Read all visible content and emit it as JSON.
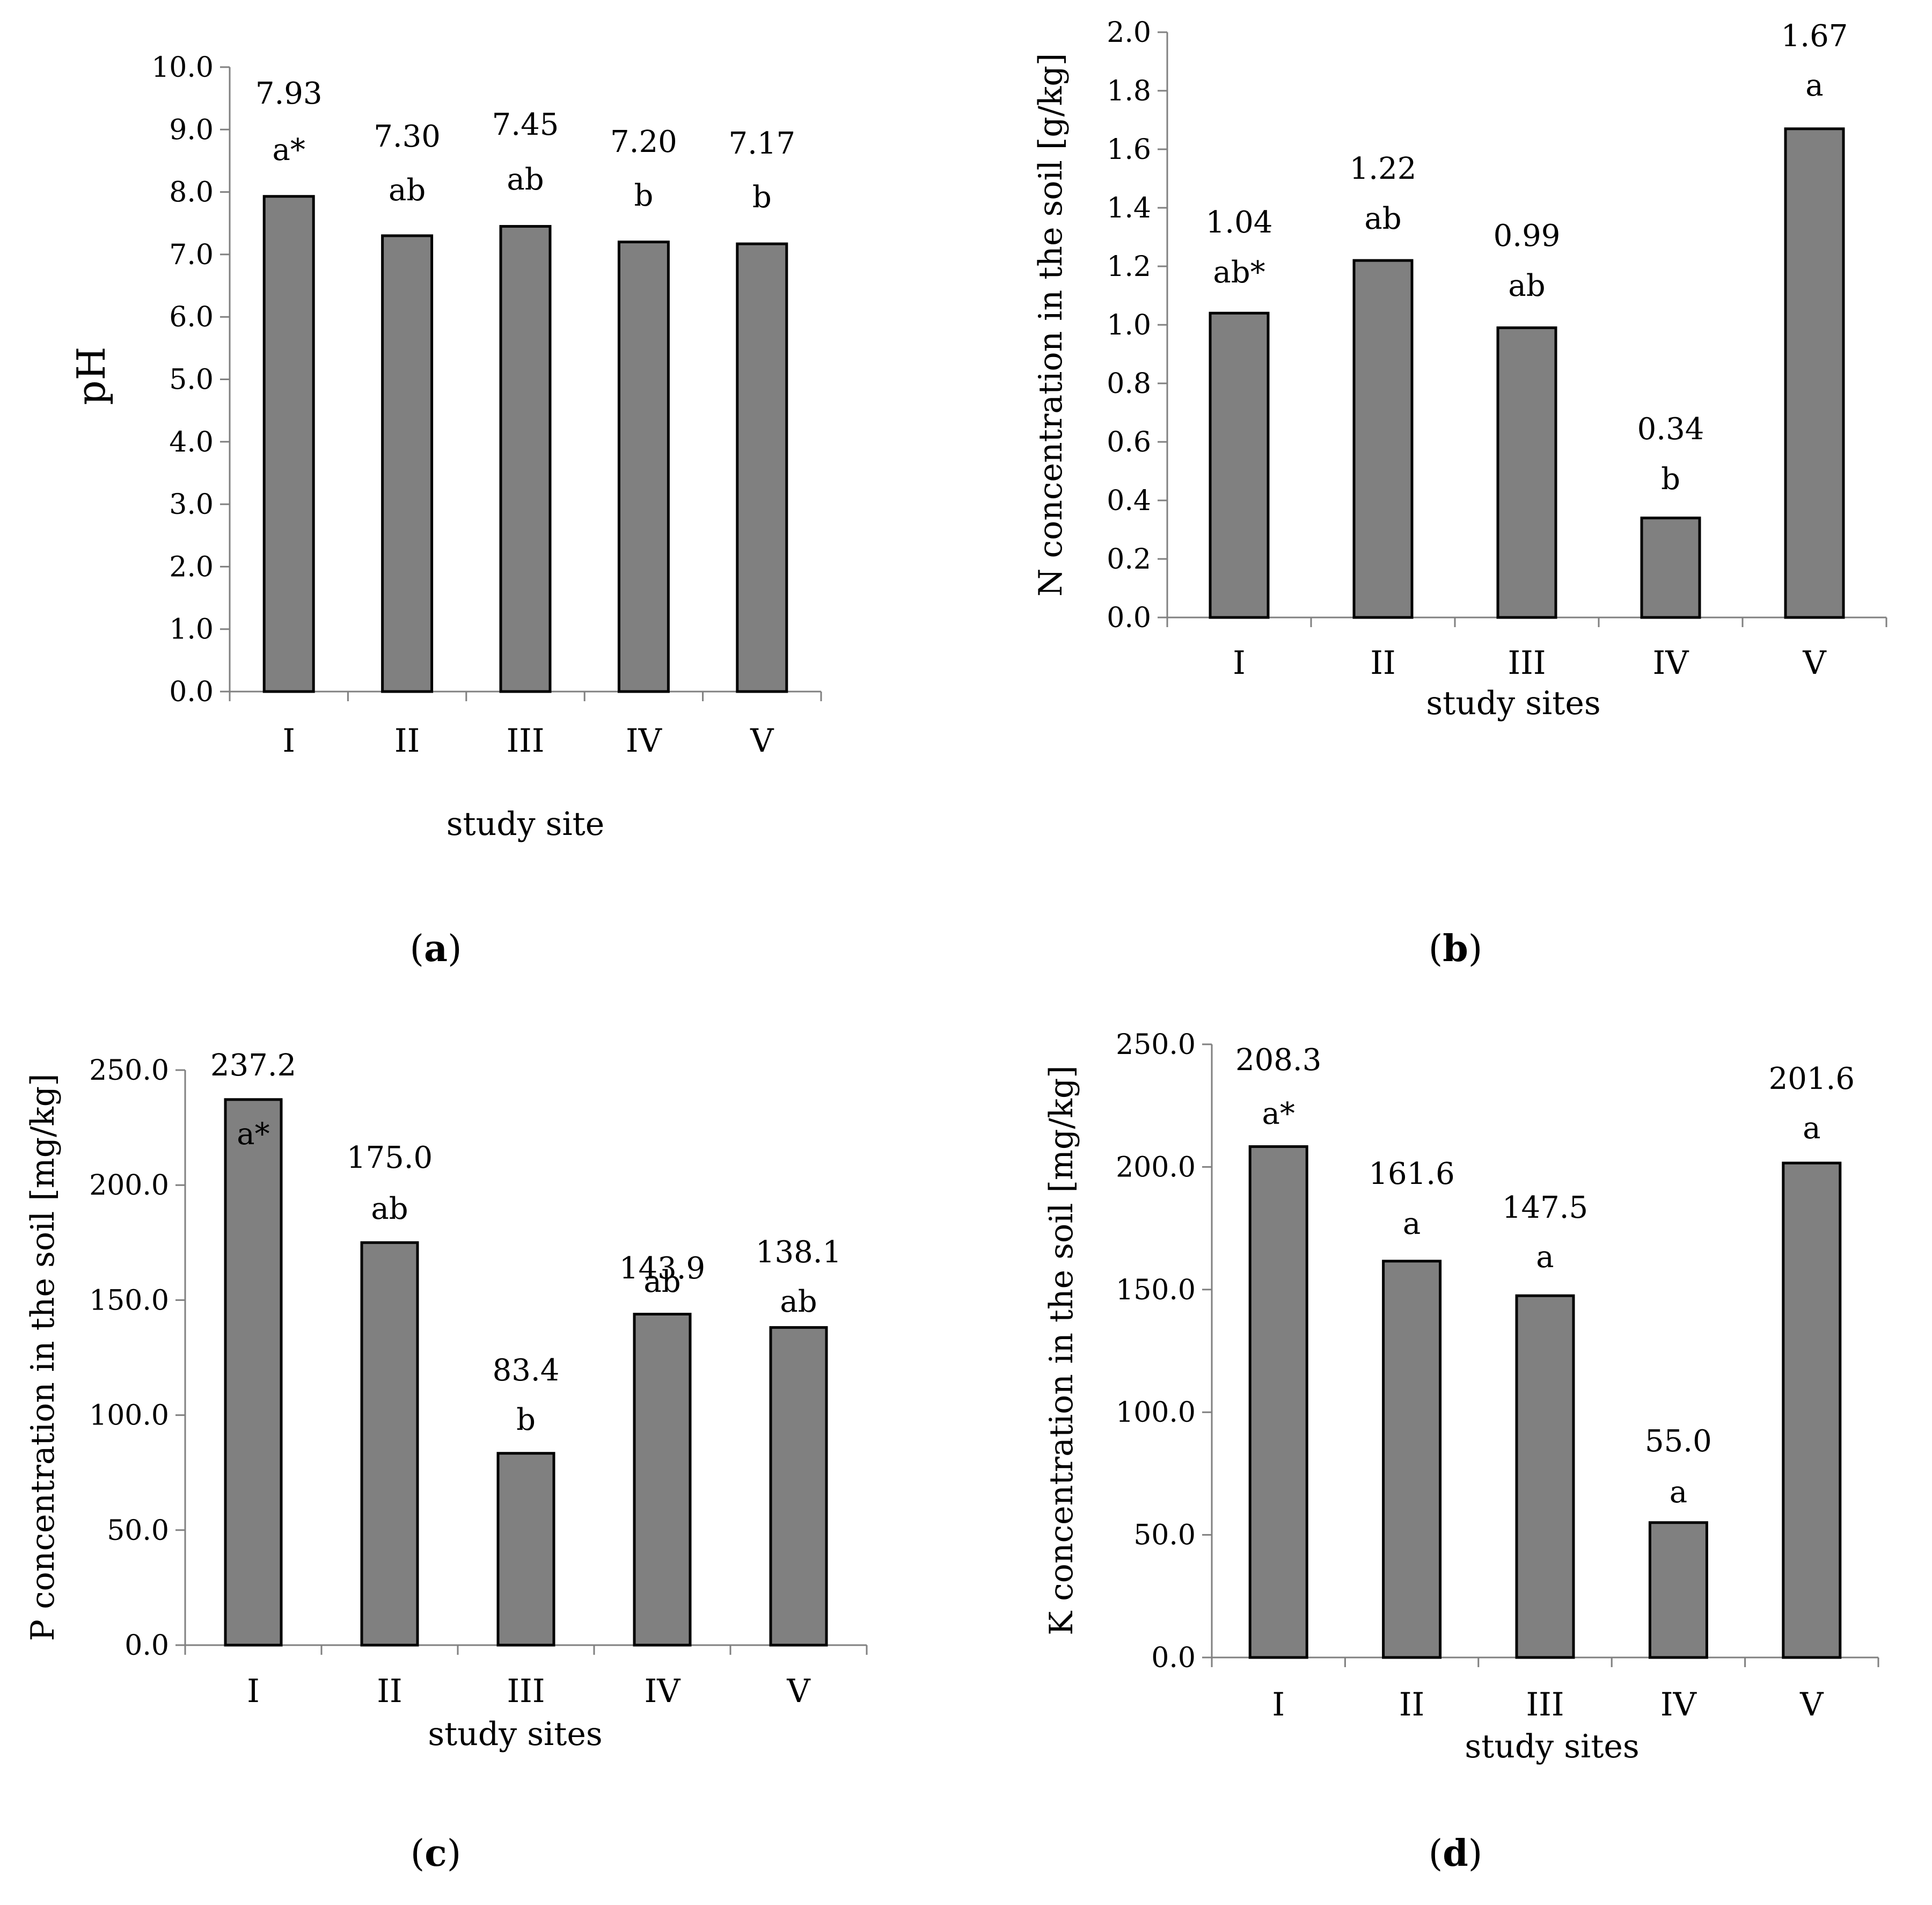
{
  "chart_data": [
    {
      "type": "bar",
      "panel": "a",
      "categories": [
        "I",
        "II",
        "III",
        "IV",
        "V"
      ],
      "values": [
        7.93,
        7.3,
        7.45,
        7.2,
        7.17
      ],
      "value_labels": [
        "7.93",
        "7.30",
        "7.45",
        "7.20",
        "7.17"
      ],
      "letters": [
        "a*",
        "ab",
        "ab",
        "b",
        "b"
      ],
      "ylabel": "pH",
      "xlabel": "study site",
      "ylim": [
        0,
        10
      ],
      "ystep": 1,
      "ydecimals": 1,
      "ytick_labels": [
        "0.0",
        "1.0",
        "2.0",
        "3.0",
        "4.0",
        "5.0",
        "6.0",
        "7.0",
        "8.0",
        "9.0",
        "10.0"
      ],
      "caption": "a"
    },
    {
      "type": "bar",
      "panel": "b",
      "categories": [
        "I",
        "II",
        "III",
        "IV",
        "V"
      ],
      "values": [
        1.04,
        1.22,
        0.99,
        0.34,
        1.67
      ],
      "value_labels": [
        "1.04",
        "1.22",
        "0.99",
        "0.34",
        "1.67"
      ],
      "letters": [
        "ab*",
        "ab",
        "ab",
        "b",
        "a"
      ],
      "ylabel": "N concentration in the soil [g/kg]",
      "xlabel": "study sites",
      "ylim": [
        0,
        2
      ],
      "ystep": 0.2,
      "ydecimals": 1,
      "ytick_labels": [
        "0.0",
        "0.2",
        "0.4",
        "0.6",
        "0.8",
        "1.0",
        "1.2",
        "1.4",
        "1.6",
        "1.8",
        "2.0"
      ],
      "caption": "b"
    },
    {
      "type": "bar",
      "panel": "c",
      "categories": [
        "I",
        "II",
        "III",
        "IV",
        "V"
      ],
      "values": [
        237.2,
        175.0,
        83.4,
        143.9,
        138.1
      ],
      "value_labels": [
        "237.2",
        "175.0",
        "83.4",
        "143.9",
        "138.1"
      ],
      "letters": [
        "a*",
        "ab",
        "b",
        "ab",
        "ab"
      ],
      "ylabel": "P concentration in the soil [mg/kg]",
      "xlabel": "study sites",
      "ylim": [
        0,
        250
      ],
      "ystep": 50,
      "ydecimals": 1,
      "ytick_labels": [
        "0.0",
        "50.0",
        "100.0",
        "150.0",
        "200.0",
        "250.0"
      ],
      "caption": "c"
    },
    {
      "type": "bar",
      "panel": "d",
      "categories": [
        "I",
        "II",
        "III",
        "IV",
        "V"
      ],
      "values": [
        208.3,
        161.6,
        147.5,
        55.0,
        201.6
      ],
      "value_labels": [
        "208.3",
        "161.6",
        "147.5",
        "55.0",
        "201.6"
      ],
      "letters": [
        "a*",
        "a",
        "a",
        "a",
        "a"
      ],
      "ylabel": "K concentration in the soil [mg/kg]",
      "xlabel": "study sites",
      "ylim": [
        0,
        250
      ],
      "ystep": 50,
      "ydecimals": 1,
      "ytick_labels": [
        "0.0",
        "50.0",
        "100.0",
        "150.0",
        "200.0",
        "250.0"
      ],
      "caption": "d"
    }
  ]
}
